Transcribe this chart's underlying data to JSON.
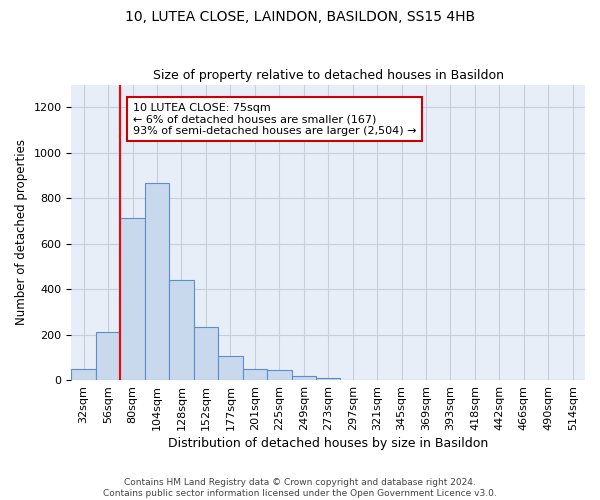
{
  "title1": "10, LUTEA CLOSE, LAINDON, BASILDON, SS15 4HB",
  "title2": "Size of property relative to detached houses in Basildon",
  "xlabel": "Distribution of detached houses by size in Basildon",
  "ylabel": "Number of detached properties",
  "footnote": "Contains HM Land Registry data © Crown copyright and database right 2024.\nContains public sector information licensed under the Open Government Licence v3.0.",
  "bin_labels": [
    "32sqm",
    "56sqm",
    "80sqm",
    "104sqm",
    "128sqm",
    "152sqm",
    "177sqm",
    "201sqm",
    "225sqm",
    "249sqm",
    "273sqm",
    "297sqm",
    "321sqm",
    "345sqm",
    "369sqm",
    "393sqm",
    "418sqm",
    "442sqm",
    "466sqm",
    "490sqm",
    "514sqm"
  ],
  "bar_values": [
    50,
    210,
    715,
    865,
    440,
    235,
    105,
    50,
    45,
    20,
    10,
    0,
    0,
    0,
    0,
    0,
    0,
    0,
    0,
    0,
    0
  ],
  "bar_color": "#c8d8ed",
  "bar_edge_color": "#5b8fc9",
  "annotation_line": "10 LUTEA CLOSE: 75sqm",
  "annotation_line2": "← 6% of detached houses are smaller (167)",
  "annotation_line3": "93% of semi-detached houses are larger (2,504) →",
  "annotation_box_color": "#ffffff",
  "annotation_border_color": "#cc0000",
  "ylim": [
    0,
    1300
  ],
  "yticks": [
    0,
    200,
    400,
    600,
    800,
    1000,
    1200
  ],
  "background_color": "#e8eef8",
  "grid_color": "#d0d8e8",
  "title1_fontsize": 10,
  "title2_fontsize": 9,
  "xlabel_fontsize": 9,
  "ylabel_fontsize": 8.5,
  "tick_fontsize": 8,
  "footnote_fontsize": 6.5
}
